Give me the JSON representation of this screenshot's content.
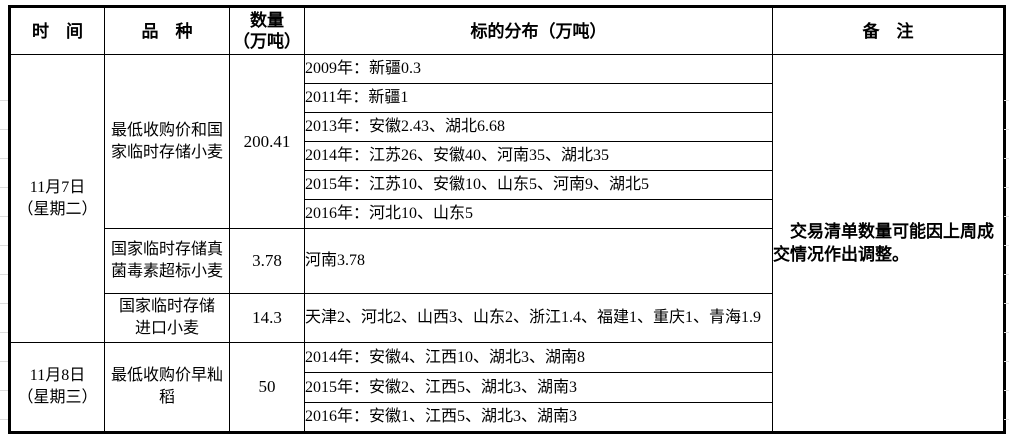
{
  "table": {
    "header": {
      "time": "时　间",
      "variety": "品　种",
      "quantity_lines": [
        "数量",
        "（万吨）"
      ],
      "distribution": "标的分布（万吨）",
      "note": "备　注"
    },
    "groups": [
      {
        "date_lines": [
          "11月7日",
          "（星期二）"
        ],
        "entries": [
          {
            "variety_lines": [
              "最低收购价和国",
              "家临时存储小麦"
            ],
            "qty": "200.41",
            "dist": [
              "2009年：新疆0.3",
              "2011年：新疆1",
              "2013年：安徽2.43、湖北6.68",
              "2014年：江苏26、安徽40、河南35、湖北35",
              "2015年：江苏10、安徽10、山东5、河南9、湖北5",
              "2016年：河北10、山东5"
            ]
          },
          {
            "variety_lines": [
              "国家临时存储真",
              "菌毒素超标小麦"
            ],
            "qty": "3.78",
            "dist": [
              "河南3.78"
            ]
          },
          {
            "variety_lines": [
              "国家临时存储",
              "进口小麦"
            ],
            "qty": "14.3",
            "dist": [
              "天津2、河北2、山西3、山东2、浙江1.4、福建1、重庆1、青海1.9"
            ]
          }
        ]
      },
      {
        "date_lines": [
          "11月8日",
          "（星期三）"
        ],
        "entries": [
          {
            "variety_lines": [
              "最低收购价早籼",
              "稻"
            ],
            "qty": "50",
            "dist": [
              "2014年：安徽4、江西10、湖北3、湖南8",
              "2015年：安徽2、江西5、湖北3、湖南3",
              "2016年：安徽1、江西5、湖北3、湖南3"
            ]
          }
        ]
      }
    ],
    "note_lines": [
      "　交易清单数量可能因上周成",
      "交情况作出调整。"
    ]
  }
}
